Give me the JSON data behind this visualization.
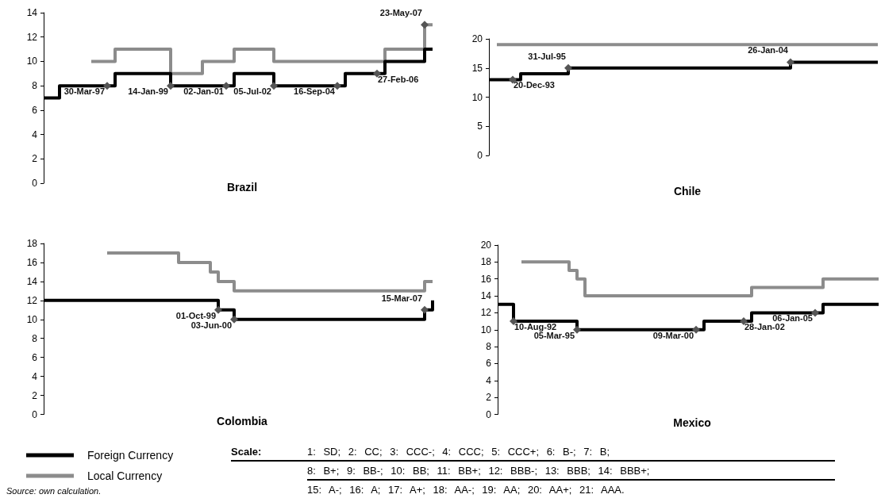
{
  "chart_data": [
    {
      "type": "step",
      "title": "Brazil",
      "categories": [
        null,
        null,
        null,
        null,
        null,
        null,
        null,
        null,
        null,
        null,
        null,
        null,
        null,
        null,
        null,
        null,
        null,
        null,
        null,
        null,
        null,
        null,
        null,
        null,
        null,
        null,
        null,
        null,
        null,
        null,
        null,
        null,
        null,
        null,
        null,
        null,
        null,
        null,
        null,
        null,
        null,
        null,
        null,
        null,
        null,
        null,
        null,
        null,
        null,
        null
      ],
      "ylim": [
        0,
        14
      ],
      "yticks": [
        0,
        2,
        4,
        6,
        8,
        10,
        12,
        14
      ],
      "grid": false,
      "legend": false,
      "series": [
        {
          "color": "#000000",
          "values": [
            7,
            7,
            8,
            8,
            8,
            8,
            8,
            8,
            8,
            9,
            9,
            9,
            9,
            9,
            9,
            9,
            8,
            8,
            8,
            8,
            8,
            8,
            8,
            8,
            9,
            9,
            9,
            9,
            9,
            8,
            8,
            8,
            8,
            8,
            8,
            8,
            8,
            8,
            9,
            9,
            9,
            9,
            9,
            10,
            10,
            10,
            10,
            10,
            11,
            11
          ],
          "value_labels": [
            null,
            null,
            null,
            null,
            null,
            null,
            null,
            null,
            "30-Mar-97",
            null,
            null,
            null,
            null,
            null,
            null,
            null,
            "14-Jan-99",
            null,
            null,
            null,
            null,
            null,
            null,
            "02-Jan-01",
            null,
            null,
            null,
            null,
            null,
            "05-Jul-02",
            null,
            null,
            null,
            null,
            null,
            null,
            null,
            "16-Sep-04",
            null,
            null,
            null,
            null,
            "27-Feb-06",
            null,
            null,
            null,
            null,
            null,
            null,
            null
          ]
        },
        {
          "color": "#8c8c8c",
          "values": [
            null,
            null,
            null,
            null,
            null,
            null,
            10,
            10,
            10,
            11,
            11,
            11,
            11,
            11,
            11,
            11,
            9,
            9,
            9,
            9,
            10,
            10,
            10,
            10,
            11,
            11,
            11,
            11,
            11,
            10,
            10,
            10,
            10,
            10,
            10,
            10,
            10,
            10,
            10,
            10,
            10,
            10,
            10,
            11,
            11,
            11,
            11,
            11,
            13,
            13
          ],
          "value_labels": [
            null,
            null,
            null,
            null,
            null,
            null,
            null,
            null,
            null,
            null,
            null,
            null,
            null,
            null,
            null,
            null,
            null,
            null,
            null,
            null,
            null,
            null,
            null,
            null,
            null,
            null,
            null,
            null,
            null,
            null,
            null,
            null,
            null,
            null,
            null,
            null,
            null,
            null,
            null,
            null,
            null,
            null,
            null,
            null,
            null,
            null,
            null,
            null,
            "23-May-07",
            null
          ]
        }
      ]
    },
    {
      "type": "step",
      "title": "Chile",
      "categories": [
        null,
        null,
        null,
        null,
        null,
        null,
        null,
        null,
        null,
        null,
        null,
        null,
        null,
        null,
        null,
        null,
        null,
        null,
        null,
        null,
        null,
        null,
        null,
        null,
        null,
        null,
        null,
        null,
        null,
        null,
        null,
        null,
        null,
        null,
        null,
        null,
        null,
        null,
        null,
        null,
        null,
        null,
        null,
        null,
        null,
        null,
        null,
        null,
        null,
        null
      ],
      "ylim": [
        0,
        20
      ],
      "yticks": [
        0,
        5,
        10,
        15,
        20
      ],
      "grid": false,
      "legend": false,
      "series": [
        {
          "color": "#000000",
          "values": [
            13,
            13,
            13,
            13,
            14,
            14,
            14,
            14,
            14,
            14,
            15,
            15,
            15,
            15,
            15,
            15,
            15,
            15,
            15,
            15,
            15,
            15,
            15,
            15,
            15,
            15,
            15,
            15,
            15,
            15,
            15,
            15,
            15,
            15,
            15,
            15,
            15,
            15,
            16,
            16,
            16,
            16,
            16,
            16,
            16,
            16,
            16,
            16,
            16,
            16
          ],
          "value_labels": [
            null,
            null,
            null,
            "20-Dec-93",
            null,
            null,
            null,
            null,
            null,
            null,
            "31-Jul-95",
            null,
            null,
            null,
            null,
            null,
            null,
            null,
            null,
            null,
            null,
            null,
            null,
            null,
            null,
            null,
            null,
            null,
            null,
            null,
            null,
            null,
            null,
            null,
            null,
            null,
            null,
            null,
            "26-Jan-04",
            null,
            null,
            null,
            null,
            null,
            null,
            null,
            null,
            null,
            null,
            null
          ]
        },
        {
          "color": "#8c8c8c",
          "values": [
            null,
            19,
            19,
            19,
            19,
            19,
            19,
            19,
            19,
            19,
            19,
            19,
            19,
            19,
            19,
            19,
            19,
            19,
            19,
            19,
            19,
            19,
            19,
            19,
            19,
            19,
            19,
            19,
            19,
            19,
            19,
            19,
            19,
            19,
            19,
            19,
            19,
            19,
            19,
            19,
            19,
            19,
            19,
            19,
            19,
            19,
            19,
            19,
            19,
            19
          ]
        }
      ]
    },
    {
      "type": "step",
      "title": "Colombia",
      "categories": [
        null,
        null,
        null,
        null,
        null,
        null,
        null,
        null,
        null,
        null,
        null,
        null,
        null,
        null,
        null,
        null,
        null,
        null,
        null,
        null,
        null,
        null,
        null,
        null,
        null,
        null,
        null,
        null,
        null,
        null,
        null,
        null,
        null,
        null,
        null,
        null,
        null,
        null,
        null,
        null,
        null,
        null,
        null,
        null,
        null,
        null,
        null,
        null,
        null,
        null
      ],
      "ylim": [
        0,
        18
      ],
      "yticks": [
        0,
        2,
        4,
        6,
        8,
        10,
        12,
        14,
        16,
        18
      ],
      "grid": false,
      "legend": "bottom left",
      "annotations": [
        "Source: own calculation."
      ],
      "series": [
        {
          "name": "Foreign Currency",
          "color": "#000000",
          "values": [
            12,
            12,
            12,
            12,
            12,
            12,
            12,
            12,
            12,
            12,
            12,
            12,
            12,
            12,
            12,
            12,
            12,
            12,
            12,
            12,
            12,
            12,
            11,
            11,
            10,
            10,
            10,
            10,
            10,
            10,
            10,
            10,
            10,
            10,
            10,
            10,
            10,
            10,
            10,
            10,
            10,
            10,
            10,
            10,
            10,
            10,
            10,
            10,
            11,
            12
          ],
          "value_labels": [
            null,
            null,
            null,
            null,
            null,
            null,
            null,
            null,
            null,
            null,
            null,
            null,
            null,
            null,
            null,
            null,
            null,
            null,
            null,
            null,
            null,
            null,
            "01-Oct-99",
            null,
            "03-Jun-00",
            null,
            null,
            null,
            null,
            null,
            null,
            null,
            null,
            null,
            null,
            null,
            null,
            null,
            null,
            null,
            null,
            null,
            null,
            null,
            null,
            null,
            null,
            null,
            "15-Mar-07",
            null
          ]
        },
        {
          "name": "Local Currency",
          "color": "#8c8c8c",
          "values": [
            null,
            null,
            null,
            null,
            null,
            null,
            null,
            null,
            17,
            17,
            17,
            17,
            17,
            17,
            17,
            17,
            17,
            16,
            16,
            16,
            16,
            15,
            14,
            14,
            13,
            13,
            13,
            13,
            13,
            13,
            13,
            13,
            13,
            13,
            13,
            13,
            13,
            13,
            13,
            13,
            13,
            13,
            13,
            13,
            13,
            13,
            13,
            13,
            14,
            14
          ]
        }
      ]
    },
    {
      "type": "step",
      "title": "Mexico",
      "categories": [
        null,
        null,
        null,
        null,
        null,
        null,
        null,
        null,
        null,
        null,
        null,
        null,
        null,
        null,
        null,
        null,
        null,
        null,
        null,
        null,
        null,
        null,
        null,
        null,
        null,
        null,
        null,
        null,
        null,
        null,
        null,
        null,
        null,
        null,
        null,
        null,
        null,
        null,
        null,
        null,
        null,
        null,
        null,
        null,
        null,
        null,
        null,
        null,
        null
      ],
      "ylim": [
        0,
        20
      ],
      "yticks": [
        0,
        2,
        4,
        6,
        8,
        10,
        12,
        14,
        16,
        18,
        20
      ],
      "grid": false,
      "legend": false,
      "series": [
        {
          "color": "#000000",
          "values": [
            13,
            13,
            11,
            11,
            11,
            11,
            11,
            11,
            11,
            11,
            10,
            10,
            10,
            10,
            10,
            10,
            10,
            10,
            10,
            10,
            10,
            10,
            10,
            10,
            10,
            10,
            11,
            11,
            11,
            11,
            11,
            11,
            12,
            12,
            12,
            12,
            12,
            12,
            12,
            12,
            12,
            13,
            13,
            13,
            13,
            13,
            13,
            13,
            13
          ],
          "value_labels": [
            null,
            null,
            "10-Aug-92",
            null,
            null,
            null,
            null,
            null,
            null,
            null,
            "05-Mar-95",
            null,
            null,
            null,
            null,
            null,
            null,
            null,
            null,
            null,
            null,
            null,
            null,
            null,
            null,
            "09-Mar-00",
            null,
            null,
            null,
            null,
            null,
            "28-Jan-02",
            null,
            null,
            null,
            null,
            null,
            null,
            null,
            null,
            "06-Jan-05",
            null,
            null,
            null,
            null,
            null,
            null,
            null,
            null
          ]
        },
        {
          "color": "#8c8c8c",
          "values": [
            null,
            null,
            null,
            18,
            18,
            18,
            18,
            18,
            18,
            17,
            16,
            14,
            14,
            14,
            14,
            14,
            14,
            14,
            14,
            14,
            14,
            14,
            14,
            14,
            14,
            14,
            14,
            14,
            14,
            14,
            14,
            14,
            15,
            15,
            15,
            15,
            15,
            15,
            15,
            15,
            15,
            16,
            16,
            16,
            16,
            16,
            16,
            16,
            16
          ]
        }
      ]
    },
    {
      "type": "other",
      "title": "Scale:",
      "annotations": [
        "1: SD; 2: CC; 3: CCC-; 4: CCC; 5: CCC+; 6: B-; 7: B;",
        "8: B+; 9: BB-; 10: BB; 11: BB+; 12: BBB-; 13: BBB; 14: BBB+;",
        "15: A-; 16: A; 17: A+; 18: AA-; 19: AA; 20: AA+; 21: AAA."
      ]
    }
  ]
}
